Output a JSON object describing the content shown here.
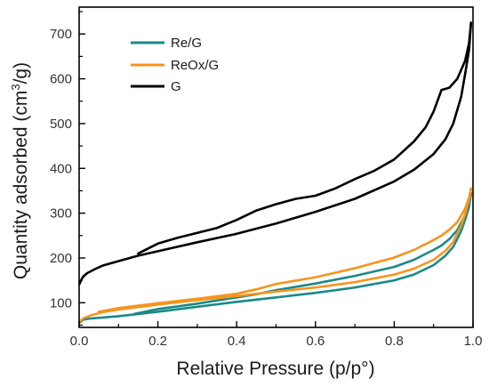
{
  "chart_data": {
    "type": "line",
    "title": "",
    "xlabel": "Relative Pressure (p/p°)",
    "ylabel_main": "Quantity adsorbed (cm",
    "ylabel_sup": "3",
    "ylabel_tail": "/g)",
    "xlim": [
      0.0,
      1.0
    ],
    "ylim": [
      45,
      760
    ],
    "x_ticks": [
      "0.0",
      "0.2",
      "0.4",
      "0.6",
      "0.8",
      "1.0"
    ],
    "x_tick_values": [
      0.0,
      0.2,
      0.4,
      0.6,
      0.8,
      1.0
    ],
    "y_ticks": [
      "100",
      "200",
      "300",
      "400",
      "500",
      "600",
      "700"
    ],
    "y_tick_values": [
      100,
      200,
      300,
      400,
      500,
      600,
      700
    ],
    "grid": false,
    "legend_position": "top-left",
    "series": [
      {
        "name": "Re/G",
        "color": "#1a8a87",
        "adsorption": {
          "x": [
            0.002,
            0.01,
            0.03,
            0.06,
            0.1,
            0.2,
            0.3,
            0.4,
            0.5,
            0.6,
            0.7,
            0.8,
            0.85,
            0.9,
            0.93,
            0.95,
            0.97,
            0.98,
            0.99,
            0.995
          ],
          "y": [
            56,
            62,
            65,
            67,
            70,
            80,
            91,
            102,
            112,
            122,
            134,
            150,
            163,
            184,
            205,
            225,
            260,
            285,
            315,
            345
          ]
        },
        "desorption": {
          "x": [
            0.995,
            0.99,
            0.98,
            0.96,
            0.94,
            0.92,
            0.9,
            0.85,
            0.8,
            0.7,
            0.6,
            0.5,
            0.45,
            0.4,
            0.3,
            0.2,
            0.14
          ],
          "y": [
            345,
            320,
            295,
            262,
            242,
            228,
            218,
            196,
            180,
            160,
            143,
            128,
            119,
            112,
            98,
            86,
            75
          ]
        }
      },
      {
        "name": "ReOx/G",
        "color": "#f7941d",
        "adsorption": {
          "x": [
            0.002,
            0.01,
            0.03,
            0.06,
            0.1,
            0.2,
            0.3,
            0.4,
            0.5,
            0.6,
            0.7,
            0.8,
            0.85,
            0.9,
            0.93,
            0.95,
            0.97,
            0.98,
            0.99,
            0.995
          ],
          "y": [
            58,
            65,
            72,
            79,
            85,
            96,
            106,
            115,
            125,
            134,
            146,
            163,
            176,
            196,
            216,
            236,
            272,
            298,
            330,
            355
          ]
        },
        "desorption": {
          "x": [
            0.995,
            0.99,
            0.98,
            0.96,
            0.94,
            0.92,
            0.9,
            0.85,
            0.8,
            0.7,
            0.6,
            0.5,
            0.45,
            0.4,
            0.3,
            0.2,
            0.1,
            0.05
          ],
          "y": [
            355,
            335,
            310,
            280,
            263,
            250,
            240,
            218,
            201,
            177,
            157,
            142,
            130,
            120,
            109,
            99,
            88,
            80
          ]
        }
      },
      {
        "name": "G",
        "color": "#000000",
        "adsorption": {
          "x": [
            0.001,
            0.005,
            0.01,
            0.02,
            0.04,
            0.06,
            0.1,
            0.15,
            0.2,
            0.3,
            0.4,
            0.5,
            0.6,
            0.7,
            0.8,
            0.85,
            0.9,
            0.93,
            0.95,
            0.97,
            0.98,
            0.99,
            0.995
          ],
          "y": [
            142,
            150,
            158,
            166,
            175,
            183,
            193,
            205,
            215,
            235,
            254,
            277,
            303,
            332,
            371,
            397,
            432,
            465,
            500,
            560,
            610,
            665,
            725
          ]
        },
        "desorption": {
          "x": [
            0.995,
            0.99,
            0.98,
            0.96,
            0.94,
            0.92,
            0.9,
            0.88,
            0.85,
            0.8,
            0.75,
            0.7,
            0.65,
            0.6,
            0.55,
            0.5,
            0.45,
            0.4,
            0.35,
            0.3,
            0.25,
            0.2,
            0.15
          ],
          "y": [
            725,
            680,
            640,
            600,
            580,
            575,
            527,
            492,
            460,
            420,
            395,
            376,
            355,
            339,
            332,
            320,
            306,
            285,
            267,
            256,
            245,
            232,
            210
          ]
        }
      }
    ]
  }
}
